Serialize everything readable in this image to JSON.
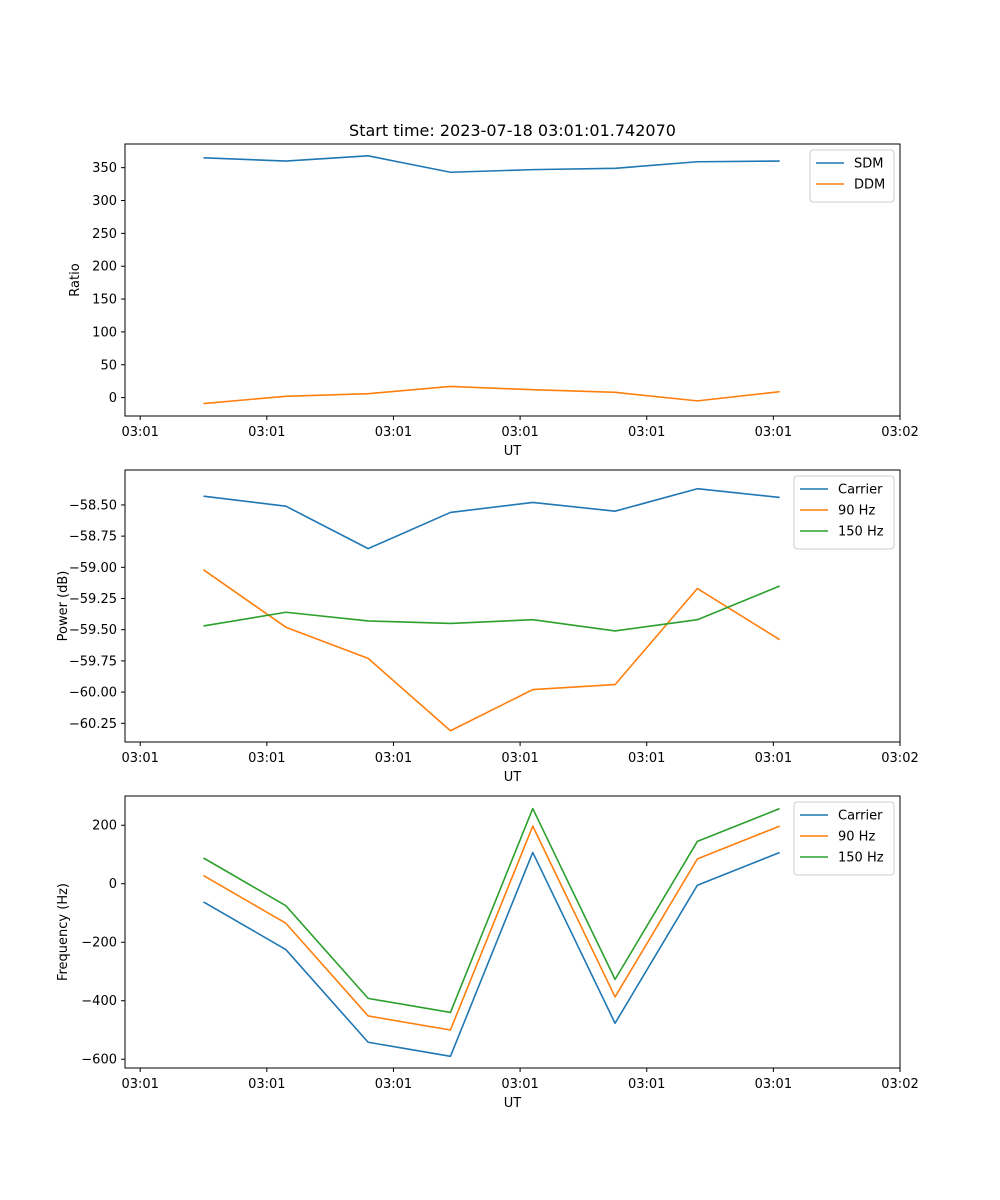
{
  "chart_data": [
    {
      "type": "line",
      "title": "Start time: 2023-07-18 03:01:01.742070",
      "xlabel": "UT",
      "ylabel": "Ratio",
      "x": [
        0.5,
        1.15,
        1.8,
        2.45,
        3.1,
        3.75,
        4.4,
        5.05
      ],
      "xlim": [
        -0.12,
        6.0
      ],
      "xticks": [
        0,
        1,
        2,
        3,
        4,
        5,
        6
      ],
      "xticklabels": [
        "03:01",
        "03:01",
        "03:01",
        "03:01",
        "03:01",
        "03:01",
        "03:02"
      ],
      "ylim": [
        -28,
        386
      ],
      "yticks": [
        0,
        50,
        100,
        150,
        200,
        250,
        300,
        350
      ],
      "yticklabels": [
        "0",
        "50",
        "100",
        "150",
        "200",
        "250",
        "300",
        "350"
      ],
      "legend_position": "upper right",
      "series": [
        {
          "name": "SDM",
          "color": "#1f77b4",
          "values": [
            365,
            360,
            368,
            343,
            347,
            349,
            359,
            360
          ]
        },
        {
          "name": "DDM",
          "color": "#ff7f0e",
          "values": [
            -9,
            2,
            6,
            17,
            12,
            8,
            -5,
            9
          ]
        }
      ]
    },
    {
      "type": "line",
      "title": "",
      "xlabel": "UT",
      "ylabel": "Power (dB)",
      "x": [
        0.5,
        1.15,
        1.8,
        2.45,
        3.1,
        3.75,
        4.4,
        5.05
      ],
      "xlim": [
        -0.12,
        6.0
      ],
      "xticks": [
        0,
        1,
        2,
        3,
        4,
        5,
        6
      ],
      "xticklabels": [
        "03:01",
        "03:01",
        "03:01",
        "03:01",
        "03:01",
        "03:01",
        "03:02"
      ],
      "ylim": [
        -60.4,
        -58.22
      ],
      "yticks": [
        -60.25,
        -60.0,
        -59.75,
        -59.5,
        -59.25,
        -59.0,
        -58.75,
        -58.5
      ],
      "yticklabels": [
        "−60.25",
        "−60.00",
        "−59.75",
        "−59.50",
        "−59.25",
        "−59.00",
        "−58.75",
        "−58.50"
      ],
      "legend_position": "upper right",
      "series": [
        {
          "name": "Carrier",
          "color": "#1f77b4",
          "values": [
            -58.43,
            -58.51,
            -58.85,
            -58.56,
            -58.48,
            -58.55,
            -58.37,
            -58.44
          ]
        },
        {
          "name": "90 Hz",
          "color": "#ff7f0e",
          "values": [
            -59.02,
            -59.48,
            -59.73,
            -60.31,
            -59.98,
            -59.94,
            -59.17,
            -59.58
          ]
        },
        {
          "name": "150 Hz",
          "color": "#2ca02c",
          "values": [
            -59.47,
            -59.36,
            -59.43,
            -59.45,
            -59.42,
            -59.51,
            -59.42,
            -59.15
          ]
        }
      ]
    },
    {
      "type": "line",
      "title": "",
      "xlabel": "UT",
      "ylabel": "Frequency (Hz)",
      "x": [
        0.5,
        1.15,
        1.8,
        2.45,
        3.1,
        3.75,
        4.4,
        5.05
      ],
      "xlim": [
        -0.12,
        6.0
      ],
      "xticks": [
        0,
        1,
        2,
        3,
        4,
        5,
        6
      ],
      "xticklabels": [
        "03:01",
        "03:01",
        "03:01",
        "03:01",
        "03:01",
        "03:01",
        "03:02"
      ],
      "ylim": [
        -630,
        300
      ],
      "yticks": [
        -600,
        -400,
        -200,
        0,
        200
      ],
      "yticklabels": [
        "−600",
        "−400",
        "−200",
        "0",
        "200"
      ],
      "legend_position": "upper right",
      "series": [
        {
          "name": "Carrier",
          "color": "#1f77b4",
          "values": [
            -62,
            -225,
            -542,
            -590,
            107,
            -477,
            -5,
            107
          ]
        },
        {
          "name": "90 Hz",
          "color": "#ff7f0e",
          "values": [
            28,
            -135,
            -452,
            -500,
            197,
            -387,
            85,
            197
          ]
        },
        {
          "name": "150 Hz",
          "color": "#2ca02c",
          "values": [
            88,
            -75,
            -392,
            -440,
            257,
            -327,
            145,
            257
          ]
        }
      ]
    }
  ]
}
